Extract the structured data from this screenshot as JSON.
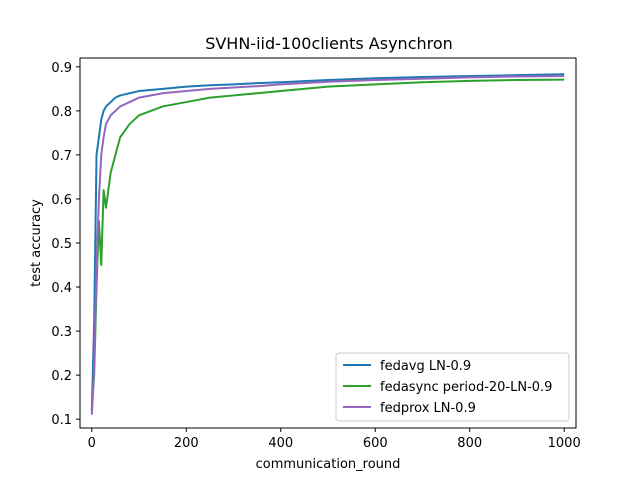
{
  "chart_data": {
    "type": "line",
    "title": "SVHN-iid-100clients Asynchron",
    "xlabel": "communication_round",
    "ylabel": "test accuracy",
    "xlim": [
      -25,
      1025
    ],
    "ylim": [
      0.08,
      0.92
    ],
    "xticks": [
      0,
      200,
      400,
      600,
      800,
      1000
    ],
    "yticks": [
      0.1,
      0.2,
      0.3,
      0.4,
      0.5,
      0.6,
      0.7,
      0.8,
      0.9
    ],
    "grid": false,
    "legend_position": "lower-right",
    "series": [
      {
        "name": "fedavg LN-0.9",
        "color": "#1f77b4",
        "x": [
          0,
          5,
          10,
          15,
          20,
          25,
          30,
          40,
          50,
          60,
          80,
          100,
          150,
          200,
          250,
          300,
          350,
          400,
          500,
          600,
          700,
          800,
          900,
          1000
        ],
        "y": [
          0.12,
          0.32,
          0.7,
          0.74,
          0.78,
          0.8,
          0.81,
          0.82,
          0.83,
          0.835,
          0.84,
          0.845,
          0.85,
          0.855,
          0.858,
          0.86,
          0.863,
          0.865,
          0.87,
          0.874,
          0.877,
          0.879,
          0.881,
          0.883
        ]
      },
      {
        "name": "fedasync period-20-LN-0.9",
        "color": "#2ca02c",
        "x": [
          0,
          5,
          10,
          15,
          20,
          25,
          30,
          40,
          50,
          60,
          80,
          100,
          150,
          200,
          250,
          300,
          350,
          400,
          500,
          600,
          700,
          800,
          900,
          1000
        ],
        "y": [
          0.12,
          0.2,
          0.4,
          0.55,
          0.45,
          0.62,
          0.58,
          0.66,
          0.7,
          0.74,
          0.77,
          0.79,
          0.81,
          0.82,
          0.83,
          0.835,
          0.84,
          0.845,
          0.855,
          0.86,
          0.865,
          0.868,
          0.87,
          0.871
        ]
      },
      {
        "name": "fedprox LN-0.9",
        "color": "#9467bd",
        "x": [
          0,
          5,
          10,
          15,
          20,
          25,
          30,
          40,
          50,
          60,
          80,
          100,
          150,
          200,
          250,
          300,
          350,
          400,
          500,
          600,
          700,
          800,
          900,
          1000
        ],
        "y": [
          0.11,
          0.22,
          0.45,
          0.6,
          0.7,
          0.74,
          0.77,
          0.79,
          0.8,
          0.81,
          0.82,
          0.83,
          0.84,
          0.845,
          0.85,
          0.853,
          0.856,
          0.86,
          0.866,
          0.87,
          0.873,
          0.876,
          0.878,
          0.879
        ]
      }
    ]
  }
}
